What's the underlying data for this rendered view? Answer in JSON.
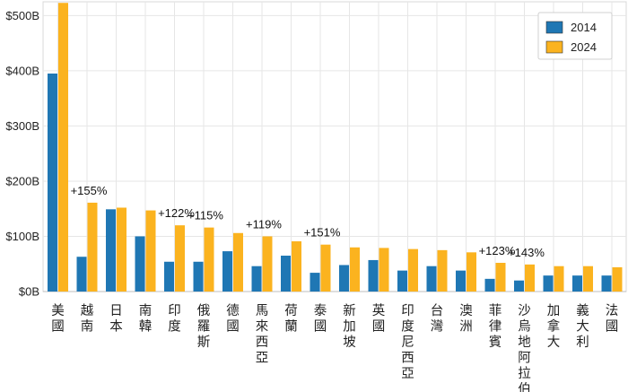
{
  "chart_data": {
    "type": "bar",
    "title": "",
    "xlabel": "",
    "ylabel": "",
    "ylim": [
      0,
      525
    ],
    "yticks": [
      0,
      100,
      200,
      300,
      400,
      500
    ],
    "ytick_labels": [
      "$0B",
      "$100B",
      "$200B",
      "$300B",
      "$400B",
      "$500B"
    ],
    "grid": true,
    "legend_position": "top-right",
    "categories": [
      "美國",
      "越南",
      "日本",
      "南韓",
      "印度",
      "俄羅斯",
      "德國",
      "馬來西亞",
      "荷蘭",
      "泰國",
      "新加坡",
      "英國",
      "印度尼西亞",
      "台灣",
      "澳洲",
      "菲律賓",
      "沙烏地阿拉伯",
      "加拿大",
      "義大利",
      "法國"
    ],
    "series": [
      {
        "name": "2014",
        "color": "#1f77b4",
        "values": [
          395,
          63,
          149,
          100,
          54,
          54,
          73,
          46,
          65,
          34,
          48,
          57,
          38,
          46,
          38,
          23,
          20,
          29,
          29,
          29
        ]
      },
      {
        "name": "2024",
        "color": "#fbb31f",
        "values": [
          523,
          161,
          152,
          147,
          120,
          116,
          106,
          100,
          91,
          85,
          80,
          79,
          77,
          75,
          71,
          52,
          49,
          46,
          46,
          44
        ]
      }
    ],
    "annotations": [
      {
        "category": "越南",
        "text": "+155%"
      },
      {
        "category": "印度",
        "text": "+122%"
      },
      {
        "category": "俄羅斯",
        "text": "+115%"
      },
      {
        "category": "馬來西亞",
        "text": "+119%"
      },
      {
        "category": "泰國",
        "text": "+151%"
      },
      {
        "category": "菲律賓",
        "text": "+123%"
      },
      {
        "category": "沙烏地阿拉伯",
        "text": "+143%"
      }
    ]
  }
}
